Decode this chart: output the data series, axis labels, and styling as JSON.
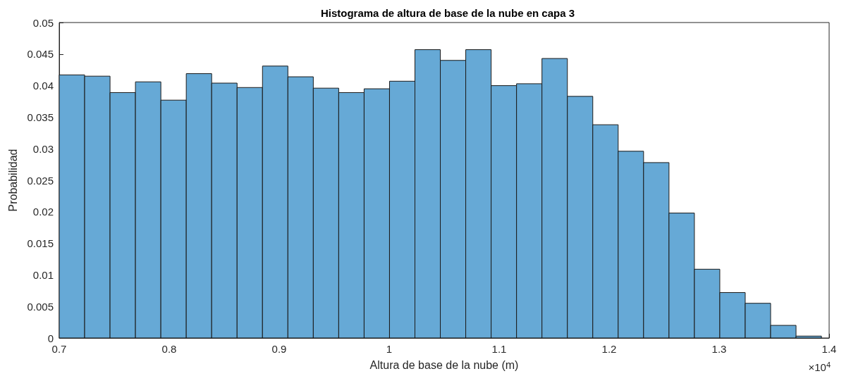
{
  "chart_data": {
    "type": "histogram",
    "title": "Histograma de altura de base de la nube en capa 3",
    "xlabel": "Altura de base de la nube (m)",
    "ylabel": "Probabilidad",
    "annotations": [
      "×10$^{4}$"
    ],
    "color": "#66a9d6",
    "bins": [
      0.7,
      0.7231,
      0.7462,
      0.7693,
      0.7924,
      0.8155,
      0.8386,
      0.8617,
      0.8848,
      0.9079,
      0.931,
      0.9541,
      0.9772,
      1.0003,
      1.0234,
      1.0465,
      1.0696,
      1.0927,
      1.1158,
      1.1389,
      1.162,
      1.1851,
      1.2082,
      1.2313,
      1.2544,
      1.2775,
      1.3006,
      1.3237,
      1.3468,
      1.3699,
      1.393
    ],
    "values": [
      0.0417,
      0.0415,
      0.0389,
      0.0406,
      0.0377,
      0.0419,
      0.0404,
      0.0397,
      0.0431,
      0.0414,
      0.0396,
      0.0389,
      0.0395,
      0.0407,
      0.0457,
      0.044,
      0.0457,
      0.04,
      0.0403,
      0.0443,
      0.0383,
      0.0338,
      0.0296,
      0.0278,
      0.0198,
      0.0109,
      0.0072,
      0.0055,
      0.002,
      0.0003
    ],
    "xlim": [
      0.7,
      1.4
    ],
    "xticks": [
      0.7,
      0.8,
      0.9,
      1,
      1.1,
      1.2,
      1.3,
      1.4
    ],
    "ylim": [
      0,
      0.05
    ],
    "yticks": [
      0,
      0.005,
      0.01,
      0.015,
      0.02,
      0.025,
      0.03,
      0.035,
      0.04,
      0.045,
      0.05
    ],
    "grid": false
  }
}
